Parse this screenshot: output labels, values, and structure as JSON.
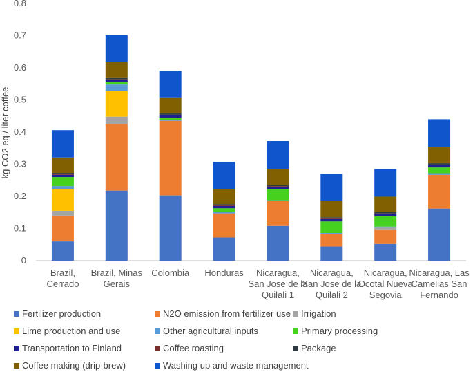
{
  "chart_data": {
    "type": "bar",
    "stacked": true,
    "ylabel": "kg CO2 eq / liter coffee",
    "xlabel": "",
    "ylim": [
      0,
      0.8
    ],
    "yticks": [
      "0",
      "0.1",
      "0.2",
      "0.3",
      "0.4",
      "0.5",
      "0.6",
      "0.7",
      "0.8"
    ],
    "grid": false,
    "legend_position": "bottom",
    "categories": [
      [
        "Brazil,",
        "Cerrado"
      ],
      [
        "Brazil, Minas",
        "Gerais"
      ],
      [
        "Colombia"
      ],
      [
        "Honduras"
      ],
      [
        "Nicaragua,",
        "San Jose de la",
        "Quilali 1"
      ],
      [
        "Nicaragua,",
        "San Jose de la",
        "Quilali 2"
      ],
      [
        "Nicaragua,",
        "Ocotal Nueva",
        "Segovia"
      ],
      [
        "Nicaragua, Las",
        "Camelias San",
        "Fernando"
      ]
    ],
    "series": [
      {
        "name": "Fertilizer production",
        "color": "#4472C4",
        "values": [
          0.06,
          0.218,
          0.203,
          0.072,
          0.108,
          0.044,
          0.052,
          0.162
        ]
      },
      {
        "name": "N2O emission from fertilizer use",
        "color": "#ED7D31",
        "values": [
          0.08,
          0.207,
          0.232,
          0.075,
          0.077,
          0.04,
          0.045,
          0.105
        ]
      },
      {
        "name": "Irrigation",
        "color": "#A5A5A5",
        "values": [
          0.015,
          0.023,
          0.0,
          0.0,
          0.0,
          0.0,
          0.007,
          0.0
        ]
      },
      {
        "name": "Lime production and use",
        "color": "#FFC000",
        "values": [
          0.067,
          0.08,
          0.0,
          0.0,
          0.0,
          0.0,
          0.0,
          0.0
        ]
      },
      {
        "name": "Other agricultural inputs",
        "color": "#5B9BD5",
        "values": [
          0.01,
          0.02,
          0.003,
          0.005,
          0.003,
          0.002,
          0.002,
          0.005
        ]
      },
      {
        "name": "Primary processing",
        "color": "#47D11F",
        "values": [
          0.028,
          0.007,
          0.007,
          0.011,
          0.035,
          0.036,
          0.032,
          0.018
        ]
      },
      {
        "name": "Transportation to Finland",
        "color": "#1F1F8F",
        "values": [
          0.007,
          0.007,
          0.007,
          0.007,
          0.007,
          0.007,
          0.007,
          0.007
        ]
      },
      {
        "name": "Coffee roasting",
        "color": "#7B2E2E",
        "values": [
          0.002,
          0.002,
          0.002,
          0.002,
          0.002,
          0.002,
          0.002,
          0.002
        ]
      },
      {
        "name": "Package",
        "color": "#2F3A40",
        "values": [
          0.004,
          0.004,
          0.004,
          0.004,
          0.004,
          0.004,
          0.004,
          0.004
        ]
      },
      {
        "name": "Coffee making (drip-brew)",
        "color": "#806000",
        "values": [
          0.048,
          0.05,
          0.048,
          0.046,
          0.05,
          0.05,
          0.048,
          0.05
        ]
      },
      {
        "name": "Washing up and waste management",
        "color": "#1155CC",
        "values": [
          0.085,
          0.084,
          0.085,
          0.085,
          0.086,
          0.085,
          0.086,
          0.087
        ]
      }
    ]
  }
}
